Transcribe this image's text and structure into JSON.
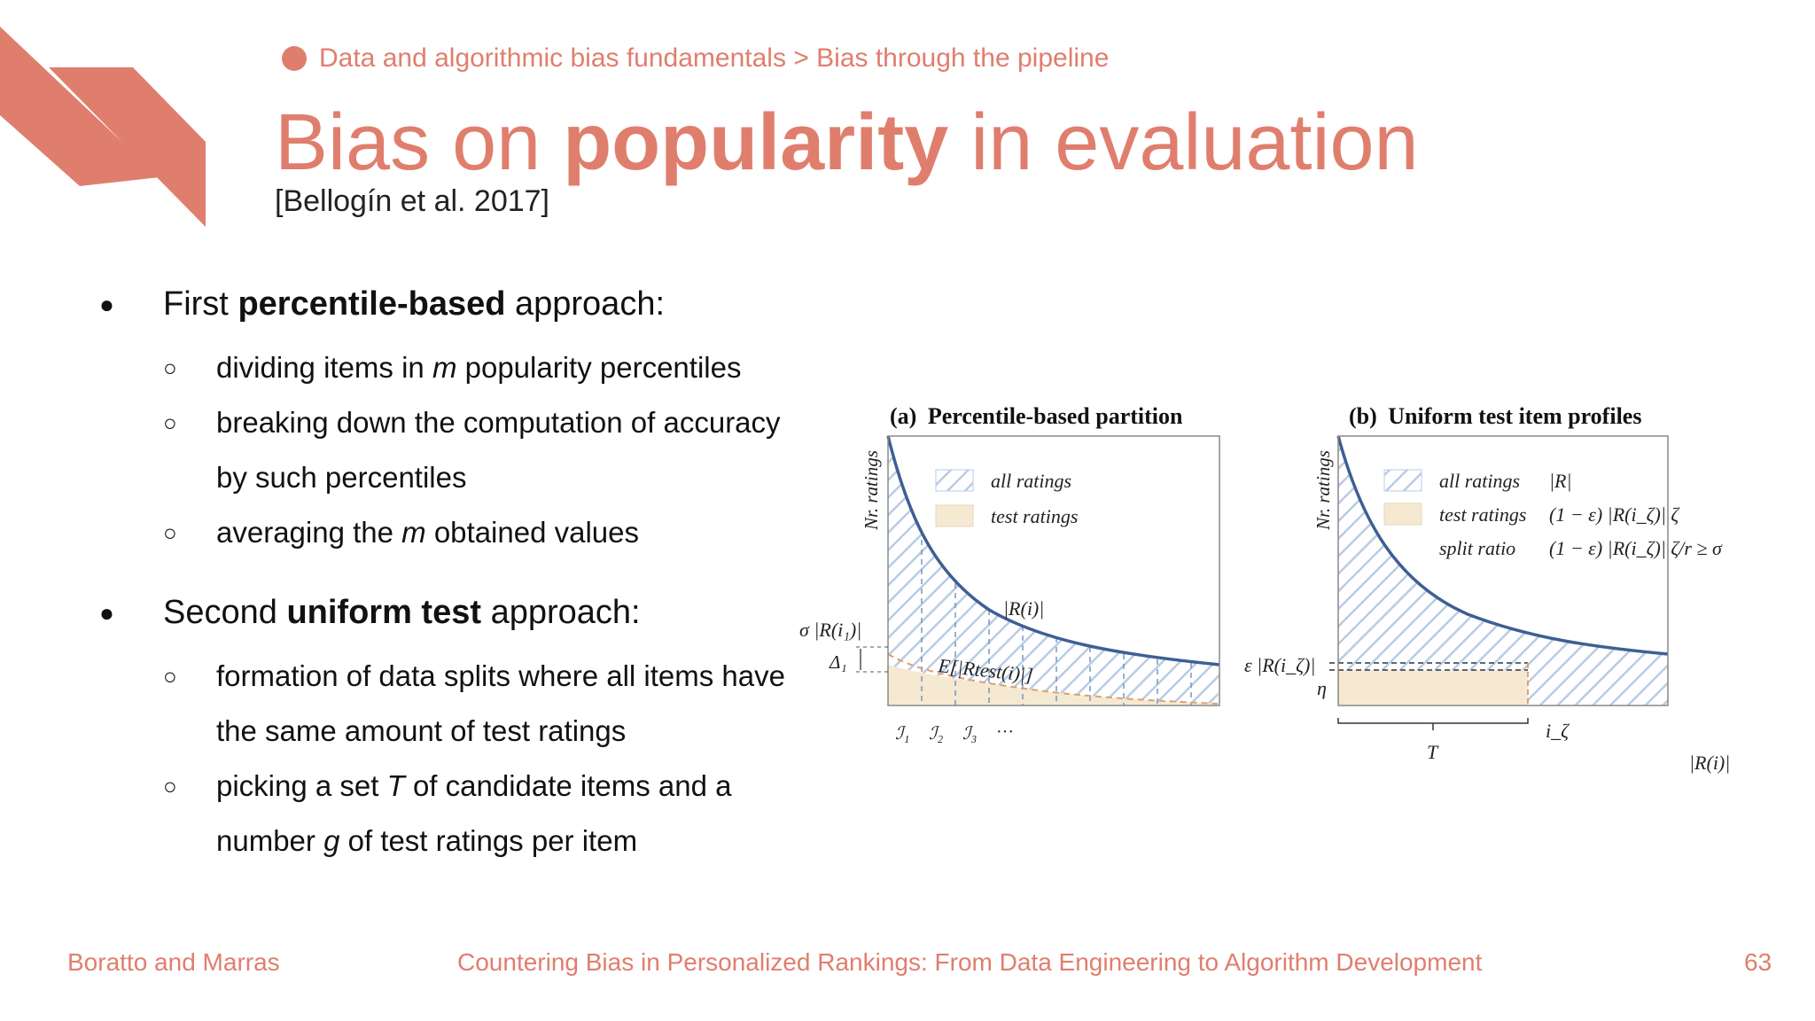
{
  "breadcrumb": "Data and algorithmic bias fundamentals > Bias through the pipeline",
  "title": {
    "part1": "Bias on ",
    "bold": "popularity",
    "part2": " in evaluation"
  },
  "citation": "[Bellogín et al. 2017]",
  "bullets": [
    {
      "pre": "First ",
      "bold": "percentile-based",
      "post": " approach:",
      "sub": [
        {
          "lines": [
            {
              "pre": "dividing items in ",
              "em": "m",
              "post": " popularity percentiles"
            }
          ]
        },
        {
          "lines": [
            {
              "pre": "breaking down the computation of accuracy",
              "em": "",
              "post": ""
            },
            {
              "pre": "by such percentiles",
              "em": "",
              "post": ""
            }
          ]
        },
        {
          "lines": [
            {
              "pre": "averaging the ",
              "em": "m",
              "post": " obtained values"
            }
          ]
        }
      ]
    },
    {
      "pre": "Second ",
      "bold": "uniform test",
      "post": " approach:",
      "sub": [
        {
          "lines": [
            {
              "pre": "formation of data splits where all items have",
              "em": "",
              "post": ""
            },
            {
              "pre": "the same amount of test ratings",
              "em": "",
              "post": ""
            }
          ]
        },
        {
          "lines": [
            {
              "pre": "picking a set ",
              "em": "T",
              "post": " of candidate items and a"
            },
            {
              "pre": "number ",
              "em": "g",
              "post": " of test ratings per item"
            }
          ]
        }
      ]
    }
  ],
  "figure": {
    "panel_a": {
      "title_label": "(a)",
      "title_text": "Percentile-based partition",
      "ylabel": "Nr. ratings",
      "legend": [
        "all ratings",
        "test ratings"
      ],
      "curve_label": "|R(i)|",
      "sigma_label": "σ |R(i₁)|",
      "delta_label": "Δ₁",
      "expect_label": "E[|Rtest(i)|]",
      "percentiles": [
        "ℐ₁",
        "ℐ₂",
        "ℐ₃",
        "···"
      ]
    },
    "panel_b": {
      "title_label": "(b)",
      "title_text": "Uniform test item profiles",
      "ylabel": "Nr. ratings",
      "legend": [
        "all ratings",
        "test ratings",
        "split ratio"
      ],
      "legend_formulas": [
        "|R|",
        "(1 − ε) |R(i_ζ)| ζ",
        "(1 − ε) |R(i_ζ)| ζ/r ≥ σ"
      ],
      "eps_label": "ε |R(i_ζ)|",
      "eta_label": "η",
      "T_label": "T",
      "izeta_label": "i_ζ",
      "xlabel": "|R(i)|"
    }
  },
  "footer": {
    "left": "Boratto and Marras",
    "center": "Countering Bias in Personalized Rankings: From Data Engineering to Algorithm Development",
    "page": "63"
  },
  "colors": {
    "accent": "#E07E6E",
    "curve": "#3E5F94",
    "hatch": "#B8CCE4",
    "test_fill": "#F5E9D2",
    "dash": "#E0A070"
  }
}
